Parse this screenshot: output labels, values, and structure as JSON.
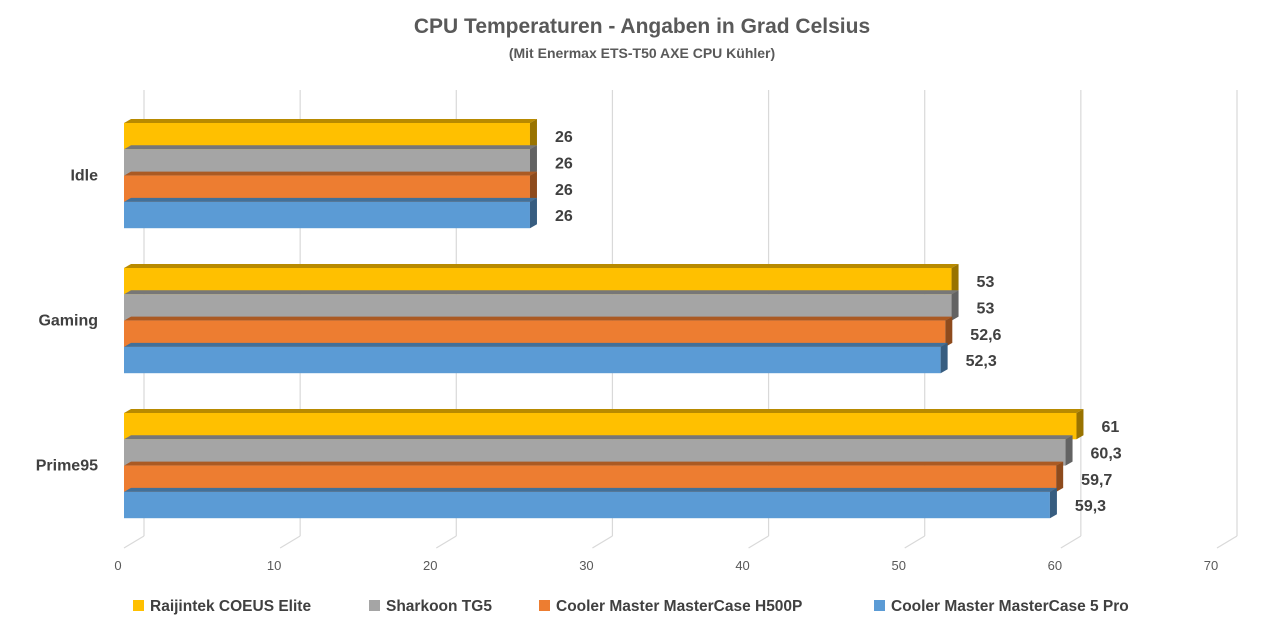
{
  "chart_data": {
    "type": "bar",
    "orientation": "horizontal",
    "style": "3d-clustered",
    "title": "CPU Temperaturen - Angaben in Grad Celsius",
    "subtitle": "(Mit Enermax ETS-T50 AXE CPU Kühler)",
    "categories": [
      "Idle",
      "Gaming",
      "Prime95"
    ],
    "series": [
      {
        "name": "Raijintek COEUS Elite",
        "color": "#FFC000",
        "values": [
          26,
          53,
          61
        ],
        "labels": [
          "26",
          "53",
          "61"
        ]
      },
      {
        "name": "Sharkoon TG5",
        "color": "#A5A5A5",
        "values": [
          26,
          53,
          60.3
        ],
        "labels": [
          "26",
          "53",
          "60,3"
        ]
      },
      {
        "name": "Cooler Master MasterCase H500P",
        "color": "#ED7D31",
        "values": [
          26,
          52.6,
          59.7
        ],
        "labels": [
          "26",
          "52,6",
          "59,7"
        ]
      },
      {
        "name": "Cooler Master MasterCase 5 Pro",
        "color": "#5B9BD5",
        "values": [
          26,
          52.3,
          59.3
        ],
        "labels": [
          "26",
          "52,3",
          "59,3"
        ]
      }
    ],
    "xlim": [
      0,
      70
    ],
    "xticks": [
      "0",
      "10",
      "20",
      "30",
      "40",
      "50",
      "60",
      "70"
    ],
    "grid": true,
    "legend": "bottom"
  }
}
